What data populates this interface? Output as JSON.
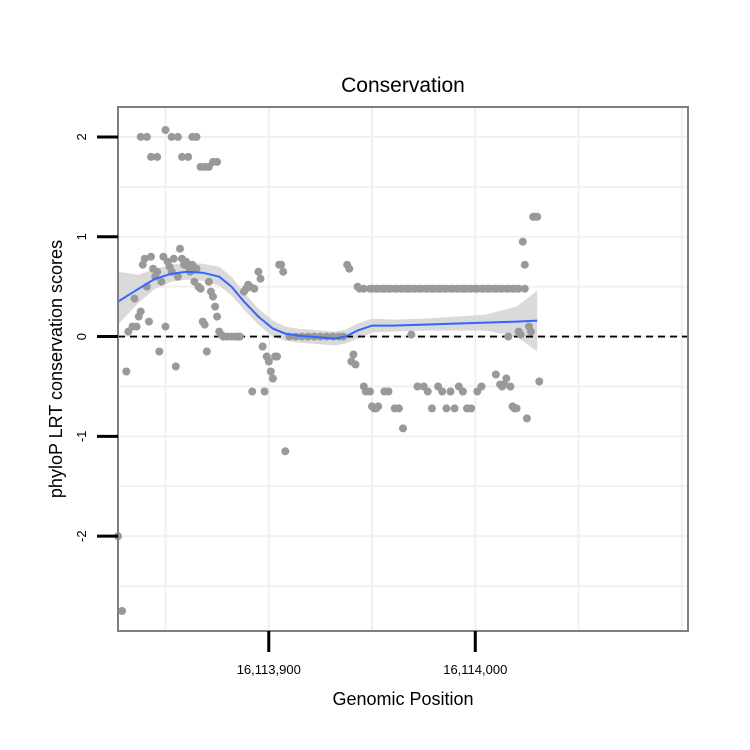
{
  "chart_data": {
    "type": "scatter",
    "title": "Conservation",
    "xlabel": "Genomic Position",
    "ylabel": "phyloP LRT conservation scores",
    "xlim": [
      16113827,
      16114103
    ],
    "ylim": [
      -2.95,
      2.3
    ],
    "x_ticks": [
      16113900,
      16114000
    ],
    "x_tick_labels": [
      "16,113,900",
      "16,114,000"
    ],
    "y_ticks": [
      2,
      1,
      0,
      -1,
      -2
    ],
    "y_tick_labels": [
      "2",
      "1",
      "0",
      "-1",
      "-2"
    ],
    "grid": true,
    "reference_line": {
      "y": 0,
      "style": "dashed"
    },
    "colors": {
      "points": "#999999",
      "smooth": "#3366ff",
      "ribbon": "#d4d4d4",
      "frame": "#7f7f7f",
      "grid": "#f0f0f0"
    },
    "points": [
      [
        16113838,
        2.0
      ],
      [
        16113841,
        2.0
      ],
      [
        16113843,
        1.8
      ],
      [
        16113846,
        1.8
      ],
      [
        16113850,
        2.07
      ],
      [
        16113853,
        2.0
      ],
      [
        16113856,
        2.0
      ],
      [
        16113858,
        1.8
      ],
      [
        16113861,
        1.8
      ],
      [
        16113863,
        2.0
      ],
      [
        16113865,
        2.0
      ],
      [
        16113867,
        1.7
      ],
      [
        16113869,
        1.7
      ],
      [
        16113871,
        1.7
      ],
      [
        16113873,
        1.75
      ],
      [
        16113875,
        1.75
      ],
      [
        16113827,
        -2.0
      ],
      [
        16113829,
        -2.75
      ],
      [
        16113831,
        -0.35
      ],
      [
        16113832,
        0.05
      ],
      [
        16113834,
        0.1
      ],
      [
        16113835,
        0.38
      ],
      [
        16113836,
        0.1
      ],
      [
        16113837,
        0.2
      ],
      [
        16113838,
        0.25
      ],
      [
        16113839,
        0.72
      ],
      [
        16113840,
        0.78
      ],
      [
        16113841,
        0.5
      ],
      [
        16113842,
        0.15
      ],
      [
        16113843,
        0.8
      ],
      [
        16113844,
        0.68
      ],
      [
        16113845,
        0.6
      ],
      [
        16113846,
        0.65
      ],
      [
        16113847,
        -0.15
      ],
      [
        16113848,
        0.55
      ],
      [
        16113849,
        0.8
      ],
      [
        16113850,
        0.1
      ],
      [
        16113851,
        0.75
      ],
      [
        16113852,
        0.7
      ],
      [
        16113853,
        0.65
      ],
      [
        16113854,
        0.78
      ],
      [
        16113855,
        -0.3
      ],
      [
        16113856,
        0.6
      ],
      [
        16113857,
        0.88
      ],
      [
        16113858,
        0.78
      ],
      [
        16113859,
        0.72
      ],
      [
        16113860,
        0.75
      ],
      [
        16113861,
        0.7
      ],
      [
        16113862,
        0.65
      ],
      [
        16113863,
        0.72
      ],
      [
        16113864,
        0.55
      ],
      [
        16113865,
        0.68
      ],
      [
        16113866,
        0.5
      ],
      [
        16113867,
        0.48
      ],
      [
        16113868,
        0.15
      ],
      [
        16113869,
        0.12
      ],
      [
        16113870,
        -0.15
      ],
      [
        16113871,
        0.55
      ],
      [
        16113872,
        0.45
      ],
      [
        16113873,
        0.4
      ],
      [
        16113874,
        0.3
      ],
      [
        16113875,
        0.2
      ],
      [
        16113876,
        0.05
      ],
      [
        16113877,
        0.02
      ],
      [
        16113878,
        0.0
      ],
      [
        16113880,
        0.0
      ],
      [
        16113882,
        0.0
      ],
      [
        16113884,
        0.0
      ],
      [
        16113885,
        0.0
      ],
      [
        16113886,
        0.0
      ],
      [
        16113888,
        0.45
      ],
      [
        16113889,
        0.48
      ],
      [
        16113890,
        0.52
      ],
      [
        16113891,
        0.5
      ],
      [
        16113893,
        0.48
      ],
      [
        16113892,
        -0.55
      ],
      [
        16113898,
        -0.55
      ],
      [
        16113895,
        0.65
      ],
      [
        16113896,
        0.58
      ],
      [
        16113897,
        -0.1
      ],
      [
        16113899,
        -0.2
      ],
      [
        16113900,
        -0.25
      ],
      [
        16113901,
        -0.35
      ],
      [
        16113902,
        -0.42
      ],
      [
        16113903,
        -0.2
      ],
      [
        16113904,
        -0.2
      ],
      [
        16113905,
        0.72
      ],
      [
        16113906,
        0.72
      ],
      [
        16113907,
        0.65
      ],
      [
        16113908,
        -1.15
      ],
      [
        16113910,
        0.0
      ],
      [
        16113913,
        0.0
      ],
      [
        16113916,
        0.0
      ],
      [
        16113919,
        0.0
      ],
      [
        16113922,
        0.0
      ],
      [
        16113925,
        0.0
      ],
      [
        16113928,
        0.0
      ],
      [
        16113931,
        0.0
      ],
      [
        16113934,
        0.0
      ],
      [
        16113936,
        0.0
      ],
      [
        16113938,
        0.72
      ],
      [
        16113939,
        0.68
      ],
      [
        16113940,
        -0.25
      ],
      [
        16113941,
        -0.18
      ],
      [
        16113942,
        -0.28
      ],
      [
        16113943,
        0.5
      ],
      [
        16113944,
        0.48
      ],
      [
        16113946,
        -0.5
      ],
      [
        16113947,
        -0.55
      ],
      [
        16113949,
        -0.55
      ],
      [
        16113950,
        -0.7
      ],
      [
        16113951,
        -0.72
      ],
      [
        16113952,
        -0.72
      ],
      [
        16113953,
        -0.7
      ],
      [
        16113956,
        -0.55
      ],
      [
        16113958,
        -0.55
      ],
      [
        16113961,
        -0.72
      ],
      [
        16113963,
        -0.72
      ],
      [
        16113965,
        -0.92
      ],
      [
        16113969,
        0.02
      ],
      [
        16113972,
        -0.5
      ],
      [
        16113975,
        -0.5
      ],
      [
        16113977,
        -0.55
      ],
      [
        16113979,
        -0.72
      ],
      [
        16113982,
        -0.5
      ],
      [
        16113984,
        -0.55
      ],
      [
        16113986,
        -0.72
      ],
      [
        16113988,
        -0.55
      ],
      [
        16113990,
        -0.72
      ],
      [
        16113992,
        -0.5
      ],
      [
        16113994,
        -0.55
      ],
      [
        16113996,
        -0.72
      ],
      [
        16113998,
        -0.72
      ],
      [
        16114001,
        -0.55
      ],
      [
        16114003,
        -0.5
      ],
      [
        16114010,
        -0.38
      ],
      [
        16114012,
        -0.48
      ],
      [
        16114013,
        -0.5
      ],
      [
        16114014,
        -0.48
      ],
      [
        16114015,
        -0.42
      ],
      [
        16114016,
        0.0
      ],
      [
        16114017,
        -0.5
      ],
      [
        16114018,
        -0.7
      ],
      [
        16114019,
        -0.72
      ],
      [
        16114020,
        -0.72
      ],
      [
        16114021,
        0.05
      ],
      [
        16114022,
        0.02
      ],
      [
        16114023,
        0.95
      ],
      [
        16114024,
        0.72
      ],
      [
        16114025,
        -0.82
      ],
      [
        16114026,
        0.1
      ],
      [
        16114027,
        0.05
      ],
      [
        16114028,
        1.2
      ],
      [
        16114029,
        1.2
      ],
      [
        16114030,
        1.2
      ],
      [
        16114031,
        -0.45
      ],
      [
        16113946,
        0.48
      ],
      [
        16113949,
        0.48
      ],
      [
        16113952,
        0.48
      ],
      [
        16113955,
        0.48
      ],
      [
        16113958,
        0.48
      ],
      [
        16113961,
        0.48
      ],
      [
        16113964,
        0.48
      ],
      [
        16113967,
        0.48
      ],
      [
        16113970,
        0.48
      ],
      [
        16113973,
        0.48
      ],
      [
        16113976,
        0.48
      ],
      [
        16113979,
        0.48
      ],
      [
        16113982,
        0.48
      ],
      [
        16113985,
        0.48
      ],
      [
        16113988,
        0.48
      ],
      [
        16113991,
        0.48
      ],
      [
        16113994,
        0.48
      ],
      [
        16113997,
        0.48
      ],
      [
        16114000,
        0.48
      ],
      [
        16114003,
        0.48
      ],
      [
        16114006,
        0.48
      ],
      [
        16114009,
        0.48
      ],
      [
        16114012,
        0.48
      ],
      [
        16114015,
        0.48
      ],
      [
        16114018,
        0.48
      ],
      [
        16114021,
        0.48
      ],
      [
        16114024,
        0.48
      ],
      [
        16113950,
        0.48
      ],
      [
        16113953,
        0.48
      ],
      [
        16113956,
        0.48
      ],
      [
        16113959,
        0.48
      ],
      [
        16113962,
        0.48
      ],
      [
        16113965,
        0.48
      ],
      [
        16113968,
        0.48
      ],
      [
        16113971,
        0.48
      ],
      [
        16113974,
        0.48
      ],
      [
        16113977,
        0.48
      ],
      [
        16113980,
        0.48
      ],
      [
        16113983,
        0.48
      ],
      [
        16113986,
        0.48
      ],
      [
        16113989,
        0.48
      ],
      [
        16113992,
        0.48
      ],
      [
        16113995,
        0.48
      ],
      [
        16113998,
        0.48
      ],
      [
        16114001,
        0.48
      ],
      [
        16114004,
        0.48
      ],
      [
        16114007,
        0.48
      ],
      [
        16114010,
        0.48
      ],
      [
        16114013,
        0.48
      ],
      [
        16114016,
        0.48
      ],
      [
        16114019,
        0.48
      ]
    ],
    "smooth": {
      "x": [
        16113827,
        16113837,
        16113845,
        16113853,
        16113860,
        16113868,
        16113876,
        16113882,
        16113888,
        16113895,
        16113902,
        16113908,
        16113914,
        16113920,
        16113926,
        16113932,
        16113937,
        16113943,
        16113950,
        16113960,
        16113975,
        16113990,
        16114005,
        16114020,
        16114030
      ],
      "y": [
        0.35,
        0.48,
        0.58,
        0.63,
        0.65,
        0.64,
        0.6,
        0.5,
        0.35,
        0.2,
        0.08,
        0.03,
        0.01,
        0.0,
        -0.01,
        -0.02,
        0.0,
        0.06,
        0.11,
        0.11,
        0.12,
        0.13,
        0.14,
        0.15,
        0.16
      ],
      "lower": [
        0.12,
        0.34,
        0.48,
        0.55,
        0.57,
        0.56,
        0.51,
        0.41,
        0.27,
        0.12,
        0.0,
        -0.04,
        -0.06,
        -0.07,
        -0.08,
        -0.09,
        -0.07,
        -0.02,
        0.04,
        0.05,
        0.06,
        0.06,
        0.06,
        0.0,
        -0.15
      ],
      "upper": [
        0.65,
        0.62,
        0.68,
        0.72,
        0.74,
        0.73,
        0.7,
        0.6,
        0.44,
        0.28,
        0.16,
        0.1,
        0.08,
        0.07,
        0.06,
        0.05,
        0.07,
        0.13,
        0.18,
        0.17,
        0.18,
        0.2,
        0.22,
        0.3,
        0.46
      ]
    }
  }
}
